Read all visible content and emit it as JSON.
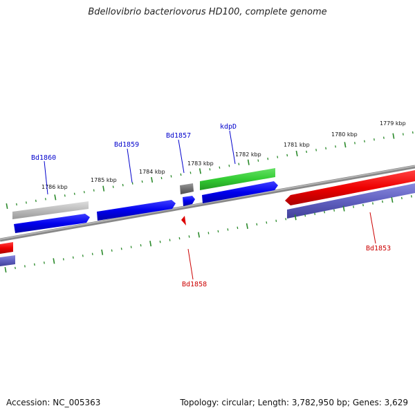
{
  "title": "Bdellovibrio bacteriovorus HD100, complete genome",
  "footer": {
    "accession": "Accession: NC_005363",
    "summary": "Topology: circular; Length: 3,782,950 bp; Genes: 3,629"
  },
  "colors": {
    "forward_label": "#0000cc",
    "reverse_label": "#cc0000",
    "tick": "#2a8a2a",
    "backbone": "#808080"
  },
  "tick_labels": [
    "1786 kbp",
    "1785 kbp",
    "1784 kbp",
    "1783 kbp",
    "1782 kbp",
    "1781 kbp",
    "1780 kbp",
    "1779 kbp"
  ],
  "genes": [
    {
      "name": "Bd1860",
      "strand": "forward"
    },
    {
      "name": "Bd1859",
      "strand": "forward"
    },
    {
      "name": "Bd1857",
      "strand": "forward"
    },
    {
      "name": "kdpD",
      "strand": "forward"
    },
    {
      "name": "Bd1858",
      "strand": "reverse"
    },
    {
      "name": "Bd1853",
      "strand": "reverse"
    }
  ]
}
